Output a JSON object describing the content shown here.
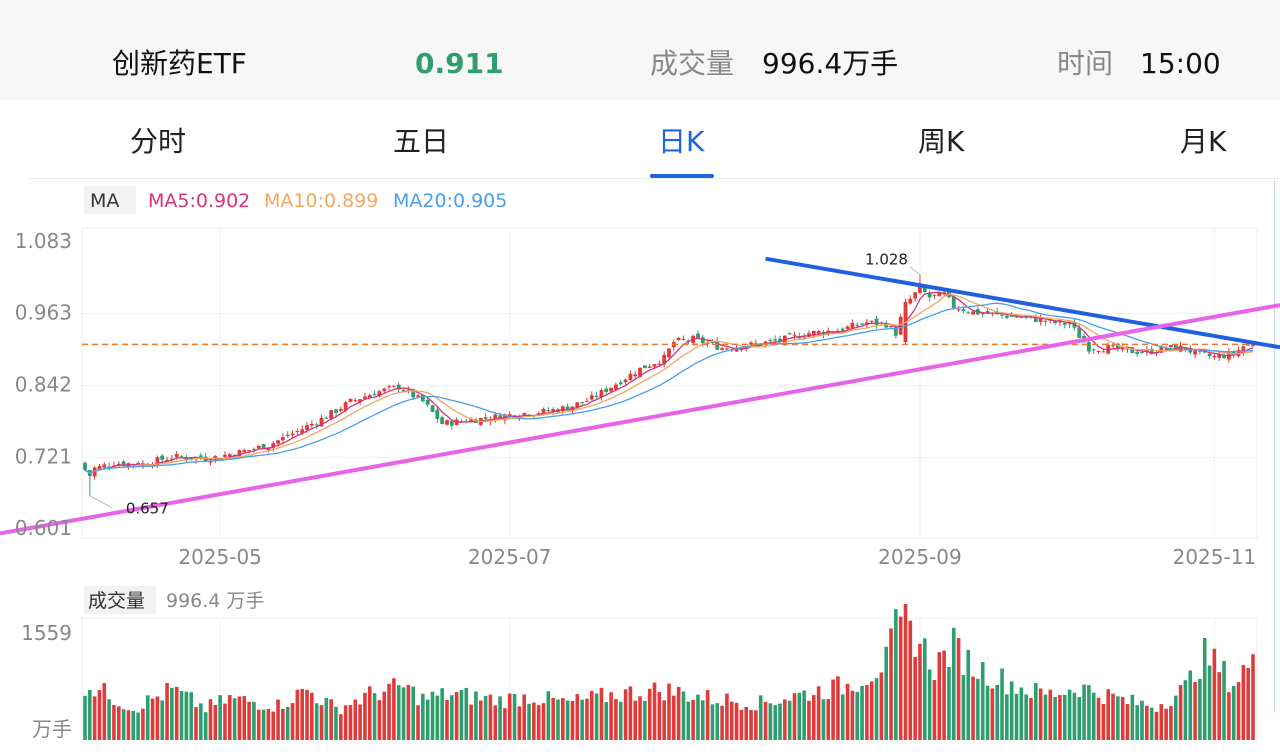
{
  "header": {
    "name": "创新药ETF",
    "price": "0.911",
    "volume_label": "成交量",
    "volume_value": "996.4万手",
    "time_label": "时间",
    "time_value": "15:00"
  },
  "tabs": [
    {
      "label": "分时",
      "active": false
    },
    {
      "label": "五日",
      "active": false
    },
    {
      "label": "日K",
      "active": true
    },
    {
      "label": "周K",
      "active": false
    },
    {
      "label": "月K",
      "active": false
    }
  ],
  "colors": {
    "up": "#e03b3b",
    "down": "#2f9e6e",
    "price": "#2f9e6e",
    "active_tab": "#1a66e0",
    "ma5": "#d6337a",
    "ma10": "#f0a860",
    "ma20": "#4a9fe8",
    "trend_down": "#1f5fe0",
    "trend_up": "#e763e8",
    "ref_line": "#ee7a28"
  },
  "chart_data": [
    {
      "type": "candlestick",
      "indicator_label": "MA",
      "legend": [
        {
          "name": "MA5",
          "value": "MA5:0.902"
        },
        {
          "name": "MA10",
          "value": "MA10:0.899"
        },
        {
          "name": "MA20",
          "value": "MA20:0.905"
        }
      ],
      "y_ticks": [
        "1.083",
        "0.963",
        "0.842",
        "0.721",
        "0.601"
      ],
      "ylim": [
        0.601,
        1.083
      ],
      "x_ticks": [
        "2025-05",
        "2025-07",
        "2025-09",
        "2025-11"
      ],
      "annotations": {
        "max": "1.028",
        "min": "0.657"
      },
      "reference_price": 0.911,
      "close_path": [
        [
          0,
          0.7
        ],
        [
          3,
          0.705
        ],
        [
          6,
          0.712
        ],
        [
          12,
          0.71
        ],
        [
          18,
          0.722
        ],
        [
          26,
          0.72
        ],
        [
          32,
          0.73
        ],
        [
          38,
          0.742
        ],
        [
          44,
          0.765
        ],
        [
          50,
          0.79
        ],
        [
          55,
          0.815
        ],
        [
          60,
          0.83
        ],
        [
          65,
          0.84
        ],
        [
          70,
          0.815
        ],
        [
          74,
          0.778
        ],
        [
          78,
          0.782
        ],
        [
          84,
          0.788
        ],
        [
          90,
          0.795
        ],
        [
          95,
          0.798
        ],
        [
          100,
          0.805
        ],
        [
          105,
          0.82
        ],
        [
          110,
          0.845
        ],
        [
          115,
          0.87
        ],
        [
          120,
          0.888
        ],
        [
          122,
          0.915
        ],
        [
          126,
          0.92
        ],
        [
          132,
          0.905
        ],
        [
          138,
          0.91
        ],
        [
          144,
          0.918
        ],
        [
          150,
          0.93
        ],
        [
          156,
          0.935
        ],
        [
          162,
          0.948
        ],
        [
          166,
          0.945
        ],
        [
          168,
          0.93
        ],
        [
          170,
          0.978
        ],
        [
          173,
          1.005
        ],
        [
          175,
          0.99
        ],
        [
          178,
          0.995
        ],
        [
          180,
          0.975
        ],
        [
          184,
          0.965
        ],
        [
          188,
          0.962
        ],
        [
          192,
          0.958
        ],
        [
          196,
          0.955
        ],
        [
          200,
          0.948
        ],
        [
          204,
          0.945
        ],
        [
          206,
          0.925
        ],
        [
          208,
          0.905
        ],
        [
          212,
          0.905
        ],
        [
          216,
          0.9
        ],
        [
          220,
          0.898
        ],
        [
          224,
          0.905
        ],
        [
          228,
          0.905
        ],
        [
          230,
          0.895
        ],
        [
          234,
          0.89
        ],
        [
          238,
          0.895
        ],
        [
          240,
          0.908
        ],
        [
          242,
          0.911
        ]
      ],
      "trendlines": [
        {
          "name": "resistance",
          "points": [
            [
              "2025-08-13",
              1.055
            ],
            [
              "2025-11-17",
              0.914
            ]
          ]
        },
        {
          "name": "support",
          "points": [
            [
              "2025-04-01",
              0.619
            ],
            [
              "2025-11-17",
              0.969
            ]
          ]
        }
      ]
    },
    {
      "type": "bar",
      "indicator_label": "成交量",
      "indicator_value": "996.4 万手",
      "y_ticks": [
        "1559"
      ],
      "unit": "万手",
      "approx_volume_profile": [
        [
          0,
          760
        ],
        [
          5,
          610
        ],
        [
          10,
          430
        ],
        [
          18,
          680
        ],
        [
          25,
          430
        ],
        [
          30,
          560
        ],
        [
          40,
          470
        ],
        [
          46,
          680
        ],
        [
          52,
          420
        ],
        [
          60,
          640
        ],
        [
          66,
          720
        ],
        [
          70,
          560
        ],
        [
          76,
          620
        ],
        [
          86,
          540
        ],
        [
          92,
          590
        ],
        [
          100,
          500
        ],
        [
          110,
          620
        ],
        [
          120,
          680
        ],
        [
          130,
          560
        ],
        [
          140,
          500
        ],
        [
          150,
          640
        ],
        [
          158,
          740
        ],
        [
          162,
          880
        ],
        [
          166,
          1060
        ],
        [
          168,
          1460
        ],
        [
          170,
          1559
        ],
        [
          172,
          1420
        ],
        [
          176,
          1000
        ],
        [
          180,
          1260
        ],
        [
          184,
          1000
        ],
        [
          190,
          820
        ],
        [
          196,
          660
        ],
        [
          200,
          620
        ],
        [
          206,
          720
        ],
        [
          210,
          640
        ],
        [
          216,
          520
        ],
        [
          222,
          460
        ],
        [
          228,
          700
        ],
        [
          230,
          960
        ],
        [
          232,
          1140
        ],
        [
          234,
          1040
        ],
        [
          238,
          760
        ],
        [
          240,
          950
        ],
        [
          242,
          996.4
        ]
      ]
    }
  ]
}
